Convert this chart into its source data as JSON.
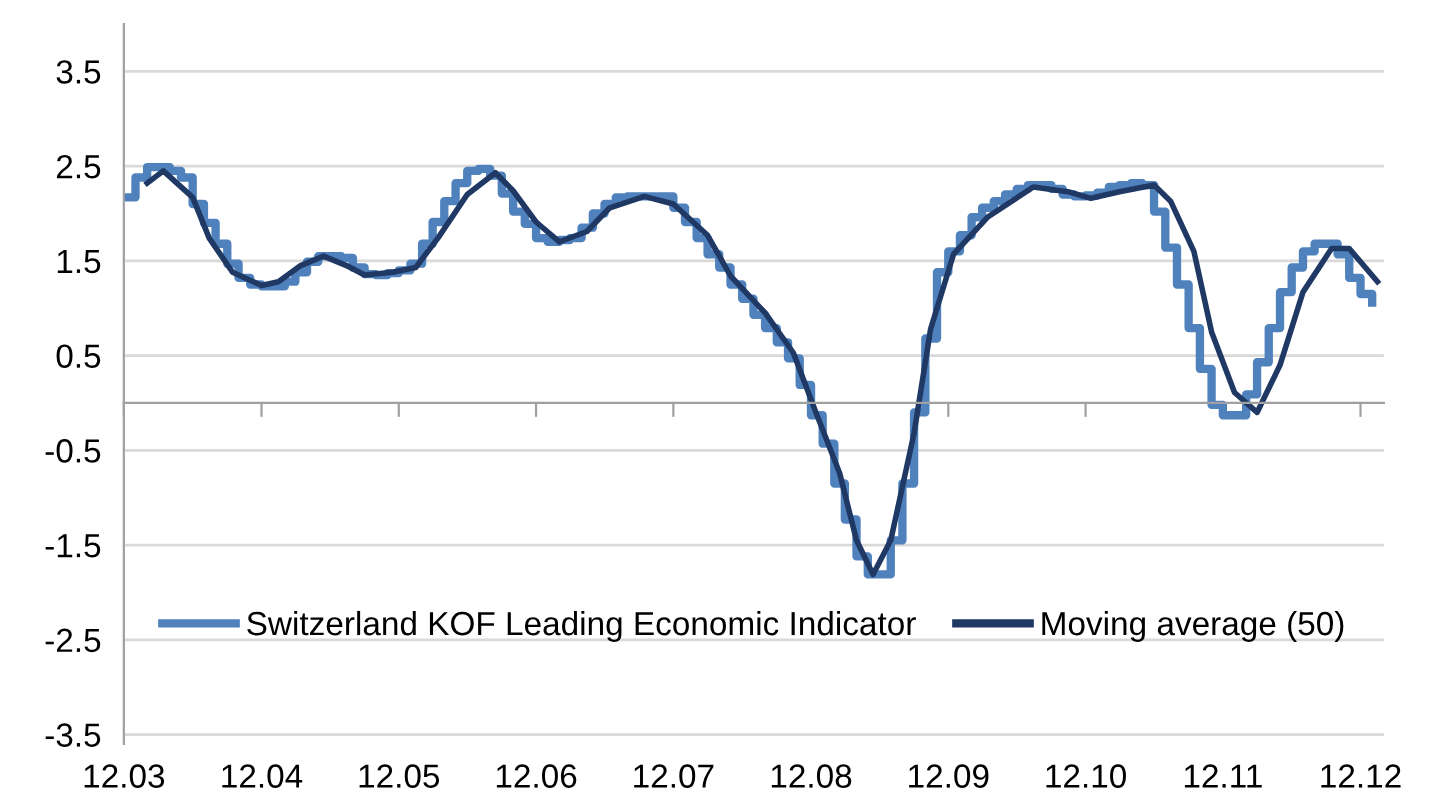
{
  "chart_data": {
    "type": "step",
    "x": [
      "2003-12",
      "2004-01",
      "2004-02",
      "2004-03",
      "2004-04",
      "2004-05",
      "2004-06",
      "2004-07",
      "2004-08",
      "2004-09",
      "2004-10",
      "2004-11",
      "2004-12",
      "2005-01",
      "2005-02",
      "2005-03",
      "2005-04",
      "2005-05",
      "2005-06",
      "2005-07",
      "2005-08",
      "2005-09",
      "2005-10",
      "2005-11",
      "2005-12",
      "2006-01",
      "2006-02",
      "2006-03",
      "2006-04",
      "2006-05",
      "2006-06",
      "2006-07",
      "2006-08",
      "2006-09",
      "2006-10",
      "2006-11",
      "2006-12",
      "2007-01",
      "2007-02",
      "2007-03",
      "2007-04",
      "2007-05",
      "2007-06",
      "2007-07",
      "2007-08",
      "2007-09",
      "2007-10",
      "2007-11",
      "2007-12",
      "2008-01",
      "2008-02",
      "2008-03",
      "2008-04",
      "2008-05",
      "2008-06",
      "2008-07",
      "2008-08",
      "2008-09",
      "2008-10",
      "2008-11",
      "2008-12",
      "2009-01",
      "2009-02",
      "2009-03",
      "2009-04",
      "2009-05",
      "2009-06",
      "2009-07",
      "2009-08",
      "2009-09",
      "2009-10",
      "2009-11",
      "2009-12",
      "2010-01",
      "2010-02",
      "2010-03",
      "2010-04",
      "2010-05",
      "2010-06",
      "2010-07",
      "2010-08",
      "2010-09",
      "2010-10",
      "2010-11",
      "2010-12",
      "2011-01",
      "2011-02",
      "2011-03",
      "2011-04",
      "2011-05",
      "2011-06",
      "2011-07",
      "2011-08",
      "2011-09",
      "2011-10",
      "2011-11",
      "2011-12",
      "2012-01",
      "2012-02",
      "2012-03",
      "2012-04",
      "2012-05",
      "2012-06",
      "2012-07",
      "2012-08",
      "2012-09",
      "2012-10",
      "2012-11",
      "2012-12",
      "2013-01"
    ],
    "series": [
      {
        "name": "Switzerland KOF Leading Economic Indicator",
        "color": "#4f81bd",
        "values": [
          2.17,
          2.38,
          2.49,
          2.49,
          2.45,
          2.38,
          2.1,
          1.9,
          1.68,
          1.47,
          1.32,
          1.25,
          1.23,
          1.23,
          1.28,
          1.38,
          1.49,
          1.55,
          1.55,
          1.53,
          1.43,
          1.36,
          1.35,
          1.37,
          1.4,
          1.47,
          1.68,
          1.91,
          2.13,
          2.32,
          2.45,
          2.47,
          2.4,
          2.21,
          2.02,
          1.89,
          1.74,
          1.7,
          1.72,
          1.74,
          1.85,
          2.0,
          2.1,
          2.17,
          2.18,
          2.18,
          2.18,
          2.18,
          2.06,
          1.91,
          1.74,
          1.57,
          1.43,
          1.25,
          1.1,
          0.93,
          0.79,
          0.64,
          0.47,
          0.19,
          -0.13,
          -0.43,
          -0.85,
          -1.23,
          -1.62,
          -1.81,
          -1.81,
          -1.45,
          -0.85,
          -0.1,
          0.68,
          1.38,
          1.6,
          1.77,
          1.96,
          2.06,
          2.13,
          2.2,
          2.26,
          2.3,
          2.3,
          2.26,
          2.2,
          2.18,
          2.19,
          2.22,
          2.28,
          2.3,
          2.32,
          2.3,
          2.02,
          1.64,
          1.25,
          0.79,
          0.36,
          -0.02,
          -0.13,
          -0.13,
          0.09,
          0.43,
          0.79,
          1.17,
          1.43,
          1.6,
          1.68,
          1.68,
          1.57,
          1.32,
          1.15,
          1.06
        ]
      },
      {
        "name": "Moving average (50)",
        "type": "line",
        "color": "#1f3864",
        "x": [
          "2004-02",
          "2004-03-15",
          "2004-06",
          "2004-07-15",
          "2004-09-15",
          "2004-12",
          "2005-01-15",
          "2005-03-15",
          "2005-05-15",
          "2005-07-15",
          "2005-09",
          "2005-11-15",
          "2006-01-15",
          "2006-03-15",
          "2006-06",
          "2006-08-15",
          "2006-10",
          "2006-12",
          "2007-02",
          "2007-04-15",
          "2007-06-15",
          "2007-09-15",
          "2007-12",
          "2008-03",
          "2008-05",
          "2008-08",
          "2008-10-15",
          "2008-12-15",
          "2009-02-15",
          "2009-04",
          "2009-05-15",
          "2009-07",
          "2009-09",
          "2009-10-15",
          "2009-12-15",
          "2010-03-15",
          "2010-07-15",
          "2010-10-15",
          "2010-12-15",
          "2011-03",
          "2011-06",
          "2011-07-15",
          "2011-09-15",
          "2011-11",
          "2012-01",
          "2012-03",
          "2012-05",
          "2012-07",
          "2012-09-15",
          "2012-11",
          "2013-01-15"
        ],
        "values": [
          2.32,
          2.45,
          2.17,
          1.74,
          1.38,
          1.24,
          1.28,
          1.45,
          1.55,
          1.45,
          1.35,
          1.38,
          1.43,
          1.74,
          2.2,
          2.43,
          2.24,
          1.91,
          1.7,
          1.81,
          2.06,
          2.18,
          2.1,
          1.77,
          1.34,
          0.95,
          0.53,
          -0.11,
          -0.74,
          -1.45,
          -1.81,
          -1.45,
          -0.32,
          0.78,
          1.57,
          1.96,
          2.28,
          2.23,
          2.16,
          2.23,
          2.3,
          2.13,
          1.6,
          0.75,
          0.11,
          -0.1,
          0.4,
          1.17,
          1.63,
          1.63,
          1.28
        ]
      }
    ],
    "xlim": [
      "2003-12",
      "2013-02"
    ],
    "xticks": [
      {
        "value": "2003-12",
        "label": "12.03"
      },
      {
        "value": "2004-12",
        "label": "12.04"
      },
      {
        "value": "2005-12",
        "label": "12.05"
      },
      {
        "value": "2006-12",
        "label": "12.06"
      },
      {
        "value": "2007-12",
        "label": "12.07"
      },
      {
        "value": "2008-12",
        "label": "12.08"
      },
      {
        "value": "2009-12",
        "label": "12.09"
      },
      {
        "value": "2010-12",
        "label": "12.10"
      },
      {
        "value": "2011-12",
        "label": "12.11"
      },
      {
        "value": "2012-12",
        "label": "12.12"
      }
    ],
    "ylim": [
      -3.6,
      4.0
    ],
    "yticks": [
      -3.5,
      -2.5,
      -1.5,
      -0.5,
      0.5,
      1.5,
      2.5,
      3.5
    ],
    "grid": "y",
    "legend": "bottom",
    "line_style": "solid",
    "marker": "none"
  }
}
